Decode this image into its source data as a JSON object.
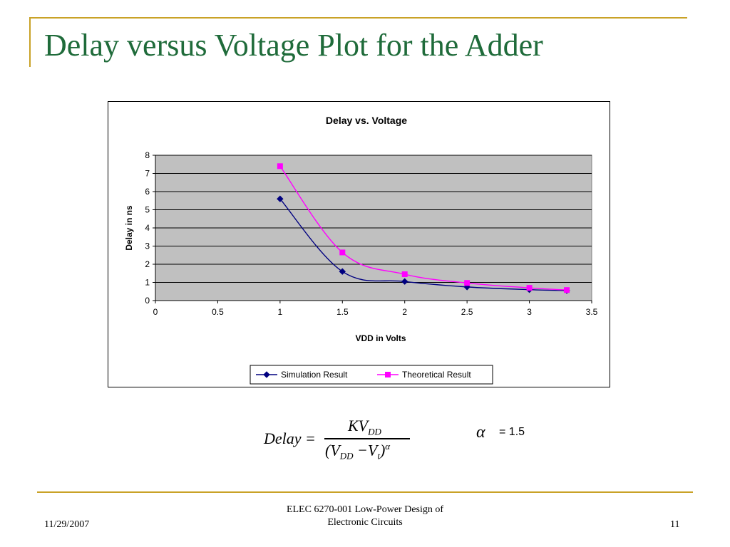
{
  "slide": {
    "title": "Delay versus Voltage Plot for the Adder",
    "formula": {
      "lhs": "Delay =",
      "numerator": "KV",
      "numerator_sub": "DD",
      "denominator_open": "(V",
      "denominator_sub1": "DD",
      "denominator_mid": " −V",
      "denominator_sub2": "t",
      "denominator_close": ")",
      "denominator_sup": "α"
    },
    "alpha_symbol": "α",
    "alpha_value": "= 1.5",
    "footer": {
      "date": "11/29/2007",
      "course_line1": "ELEC 6270-001 Low-Power Design of",
      "course_line2": "Electronic Circuits",
      "page": "11"
    }
  },
  "chart_data": {
    "type": "line",
    "title": "Delay vs. Voltage",
    "xlabel": "VDD in Volts",
    "ylabel": "Delay in ns",
    "xlim": [
      0,
      3.5
    ],
    "ylim": [
      0,
      8
    ],
    "xticks": [
      "0",
      "0.5",
      "1",
      "1.5",
      "2",
      "2.5",
      "3",
      "3.5"
    ],
    "yticks": [
      "0",
      "1",
      "2",
      "3",
      "4",
      "5",
      "6",
      "7",
      "8"
    ],
    "grid": true,
    "legend_position": "bottom",
    "series": [
      {
        "name": "Simulation Result",
        "color": "#000080",
        "marker": "diamond",
        "points": [
          [
            1,
            5.6
          ],
          [
            1.5,
            1.6
          ],
          [
            2,
            1.05
          ],
          [
            2.5,
            0.75
          ],
          [
            3,
            0.6
          ],
          [
            3.3,
            0.55
          ]
        ]
      },
      {
        "name": "Theoretical Result",
        "color": "#ff00ff",
        "marker": "square",
        "points": [
          [
            1,
            7.4
          ],
          [
            1.5,
            2.65
          ],
          [
            2,
            1.45
          ],
          [
            2.5,
            0.97
          ],
          [
            3,
            0.7
          ],
          [
            3.3,
            0.58
          ]
        ]
      }
    ]
  }
}
